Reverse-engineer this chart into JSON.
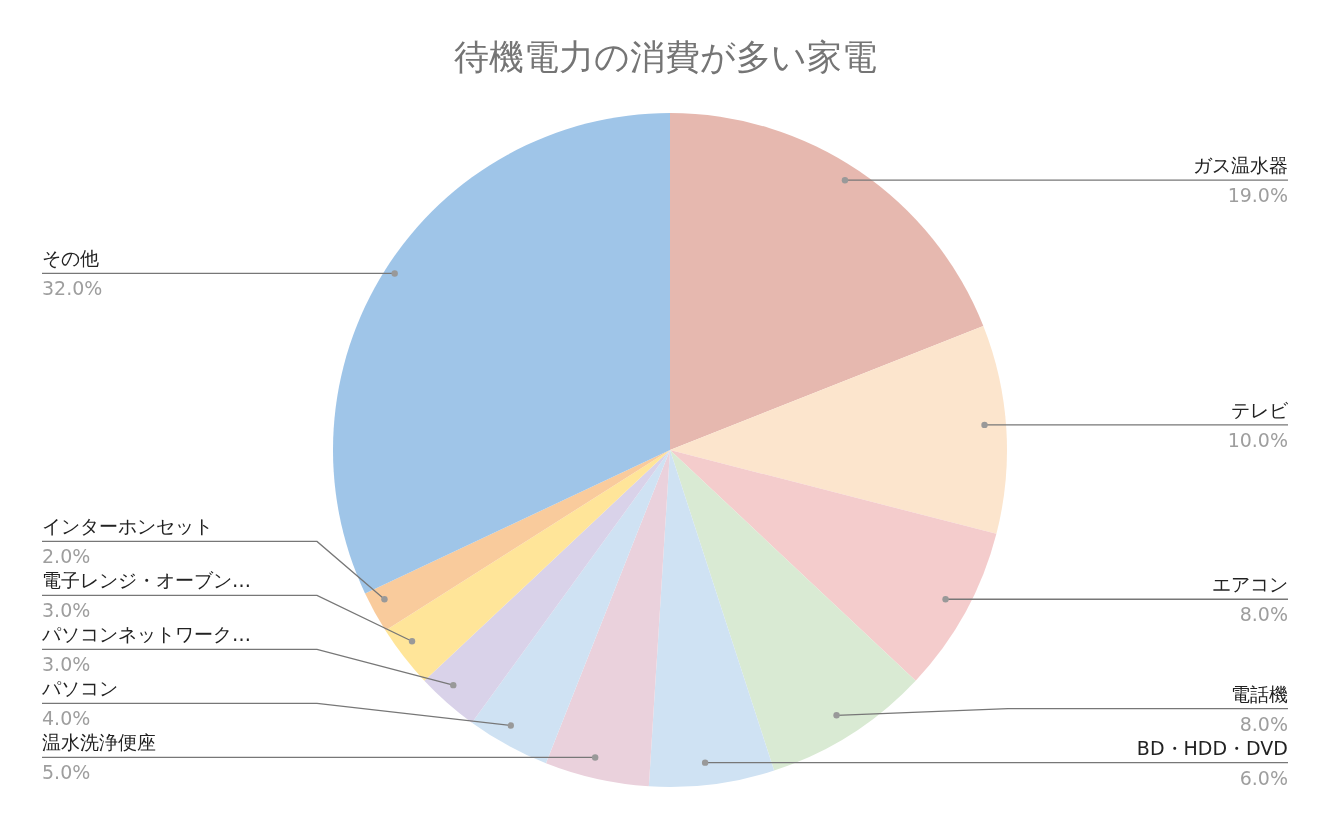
{
  "chart_data": {
    "type": "pie",
    "title": "待機電力の消費が多い家電",
    "categories": [
      "ガス温水器",
      "テレビ",
      "エアコン",
      "電話機",
      "BD・HDD・DVD",
      "温水洗浄便座",
      "パソコン",
      "パソコンネットワーク…",
      "電子レンジ・オーブン…",
      "インターホンセット",
      "その他"
    ],
    "values": [
      19,
      10,
      8,
      8,
      6,
      5,
      4,
      3,
      3,
      2,
      32
    ],
    "value_labels": [
      "19.0%",
      "10.0%",
      "8.0%",
      "8.0%",
      "6.0%",
      "5.0%",
      "4.0%",
      "3.0%",
      "3.0%",
      "2.0%",
      "32.0%"
    ],
    "colors": [
      "#e6b8af",
      "#fce5cd",
      "#f4cccc",
      "#d9ead3",
      "#cfe2f3",
      "#ead1dc",
      "#cfe2f3",
      "#d9d2e9",
      "#ffe599",
      "#f9cb9c",
      "#9fc5e8"
    ],
    "legend": false
  }
}
